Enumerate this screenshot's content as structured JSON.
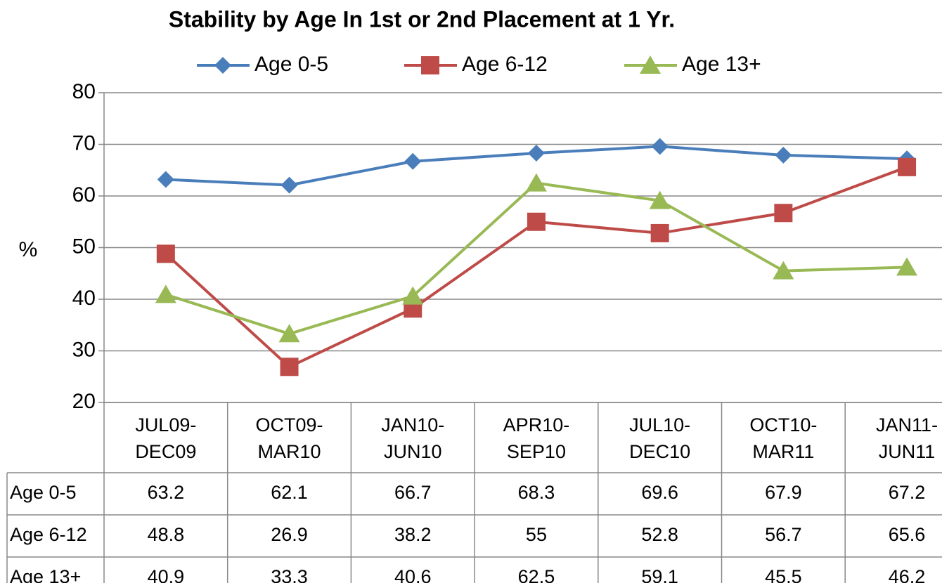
{
  "chart_data": {
    "type": "line",
    "title": "Stability by Age In 1st or 2nd Placement at 1 Yr.",
    "y_label": "%",
    "categories": [
      "JUL09-DEC09",
      "OCT09-MAR10",
      "JAN10-JUN10",
      "APR10-SEP10",
      "JUL10-DEC10",
      "OCT10-MAR11",
      "JAN11-JUN11"
    ],
    "series": [
      {
        "name": "Age 0-5",
        "color": "#4a7ebb",
        "marker": "diamond",
        "values": [
          63.2,
          62.1,
          66.7,
          68.3,
          69.6,
          67.9,
          67.2
        ]
      },
      {
        "name": "Age 6-12",
        "color": "#be4b48",
        "marker": "square",
        "values": [
          48.8,
          26.9,
          38.2,
          55,
          52.8,
          56.7,
          65.6
        ]
      },
      {
        "name": "Age 13+",
        "color": "#98b954",
        "marker": "triangle",
        "values": [
          40.9,
          33.3,
          40.6,
          62.5,
          59.1,
          45.5,
          46.2
        ]
      }
    ],
    "ylim": [
      20,
      80
    ],
    "yticks": [
      20,
      30,
      40,
      50,
      60,
      70,
      80
    ],
    "grid": true,
    "legend": "top",
    "data_table": true
  }
}
